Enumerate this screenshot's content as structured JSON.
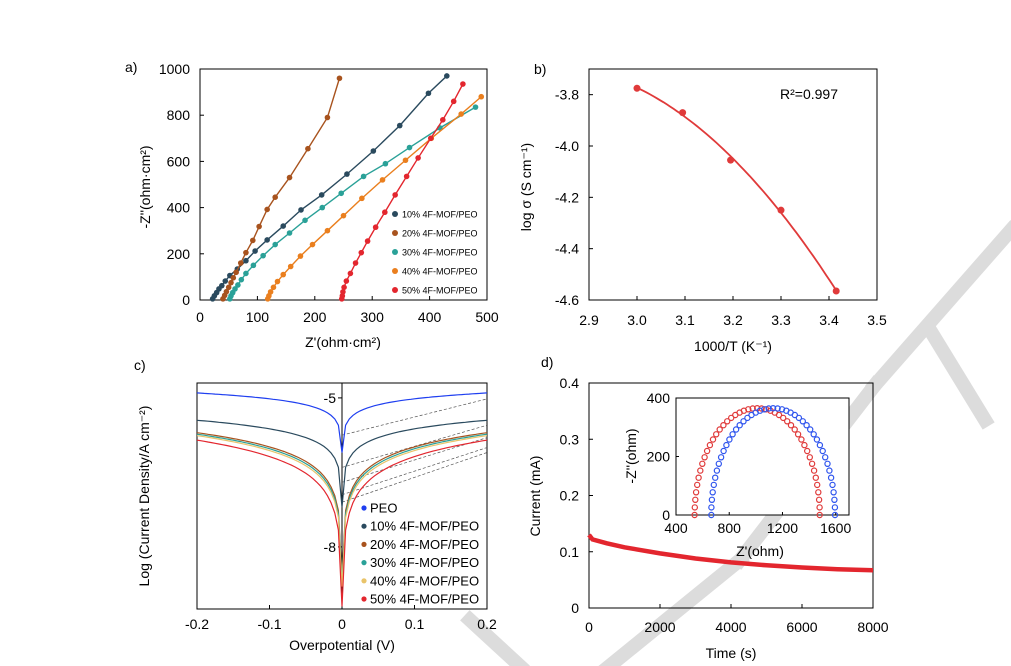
{
  "panels": {
    "a": {
      "label": "a)",
      "xlabel": "Z'(ohm·cm²)",
      "ylabel": "-Z''(ohm·cm²)"
    },
    "b": {
      "label": "b)",
      "xlabel": "1000/T (K⁻¹)",
      "ylabel": "log σ (S cm⁻¹)",
      "annotation": "R²=0.997"
    },
    "c": {
      "label": "c)",
      "xlabel": "Overpotential (V)",
      "ylabel": "Log (Current Density/A cm⁻²)"
    },
    "d": {
      "label": "d)",
      "xlabel": "Time (s)",
      "ylabel": "Current (mA)",
      "inset_xlabel": "Z'(ohm)",
      "inset_ylabel": "-Z''(ohm)"
    }
  },
  "colors": {
    "s10": "#2a4a5e",
    "s20": "#a8531e",
    "s30": "#2aa198",
    "s40": "#ea7f1e",
    "s50": "#e3262e",
    "peo": "#1f3ff0",
    "red": "#e03a3a",
    "blue": "#2f55ee",
    "watermark": "#dcdcdc"
  },
  "chart_data": [
    {
      "id": "a",
      "type": "scatter",
      "title": "",
      "xlabel": "Z'(ohm·cm²)",
      "ylabel": "-Z''(ohm·cm²)",
      "xlim": [
        0,
        500
      ],
      "ylim": [
        0,
        1000
      ],
      "xticks": [
        "0",
        "100",
        "200",
        "300",
        "400",
        "500"
      ],
      "yticks": [
        "0",
        "200",
        "400",
        "600",
        "800",
        "1000"
      ],
      "legend_position": "bottom-right",
      "series": [
        {
          "name": "10% 4F-MOF/PEO",
          "color": "#2a4a5e",
          "x": [
            22,
            25,
            29,
            33,
            38,
            44,
            52,
            65,
            80,
            96,
            117,
            145,
            176,
            212,
            256,
            302,
            348,
            398,
            430
          ],
          "y": [
            5,
            18,
            32,
            48,
            62,
            82,
            106,
            134,
            170,
            212,
            260,
            320,
            390,
            455,
            545,
            645,
            755,
            895,
            970
          ]
        },
        {
          "name": "20% 4F-MOF/PEO",
          "color": "#a8531e",
          "x": [
            40,
            43,
            46,
            50,
            54,
            58,
            63,
            71,
            80,
            92,
            103,
            117,
            131,
            156,
            188,
            222,
            243
          ],
          "y": [
            5,
            20,
            36,
            55,
            75,
            96,
            120,
            160,
            205,
            258,
            318,
            392,
            445,
            530,
            655,
            790,
            960
          ]
        },
        {
          "name": "30% 4F-MOF/PEO",
          "color": "#2aa198",
          "x": [
            52,
            54,
            57,
            61,
            66,
            72,
            80,
            93,
            110,
            131,
            156,
            183,
            213,
            246,
            285,
            323,
            365,
            418,
            480
          ],
          "y": [
            5,
            18,
            32,
            48,
            65,
            88,
            115,
            150,
            192,
            240,
            290,
            345,
            400,
            462,
            535,
            590,
            660,
            745,
            835
          ]
        },
        {
          "name": "40% 4F-MOF/PEO",
          "color": "#ea7f1e",
          "x": [
            118,
            120,
            123,
            128,
            135,
            145,
            158,
            175,
            196,
            222,
            250,
            282,
            318,
            358,
            403,
            455,
            490
          ],
          "y": [
            5,
            18,
            35,
            55,
            80,
            110,
            145,
            190,
            240,
            300,
            365,
            440,
            520,
            605,
            700,
            805,
            880
          ]
        },
        {
          "name": "50% 4F-MOF/PEO",
          "color": "#e3262e",
          "x": [
            247,
            248,
            249,
            251,
            255,
            262,
            271,
            281,
            292,
            306,
            322,
            340,
            360,
            380,
            402,
            423,
            442,
            458
          ],
          "y": [
            5,
            18,
            35,
            55,
            82,
            115,
            160,
            205,
            255,
            315,
            380,
            455,
            535,
            615,
            700,
            780,
            860,
            935
          ]
        }
      ]
    },
    {
      "id": "b",
      "type": "scatter",
      "title": "",
      "xlabel": "1000/T (K⁻¹)",
      "ylabel": "log σ (S cm⁻¹)",
      "xlim": [
        2.9,
        3.5
      ],
      "ylim": [
        -4.6,
        -3.7
      ],
      "xticks": [
        "2.9",
        "3.0",
        "3.1",
        "3.2",
        "3.3",
        "3.4",
        "3.5"
      ],
      "yticks": [
        "-3.8",
        "-4.0",
        "-4.2",
        "-4.4",
        "-4.6"
      ],
      "annotation": "R²=0.997",
      "series": [
        {
          "name": "",
          "color": "#e03a3a",
          "x": [
            3.0,
            3.095,
            3.195,
            3.3,
            3.415
          ],
          "y": [
            -3.775,
            -3.87,
            -4.055,
            -4.25,
            -4.565
          ],
          "fit": "quadratic"
        }
      ]
    },
    {
      "id": "c",
      "type": "line",
      "title": "",
      "xlabel": "Overpotential (V)",
      "ylabel": "Log (Current Density/A cm⁻²)",
      "xlim": [
        -0.2,
        0.2
      ],
      "ylim": [
        -9.25,
        -4.7
      ],
      "xticks": [
        "-0.2",
        "-0.1",
        "0",
        "0.1",
        "0.2"
      ],
      "yticks": [
        "-5",
        "-8"
      ],
      "legend_position": "bottom-right",
      "series": [
        {
          "name": "PEO",
          "color": "#1f3ff0",
          "edge": -4.9,
          "dip": -6.1
        },
        {
          "name": "10% 4F-MOF/PEO",
          "color": "#2a4a5e",
          "edge": -5.45,
          "dip": -7.2
        },
        {
          "name": "20% 4F-MOF/PEO",
          "color": "#a8531e",
          "edge": -5.7,
          "dip": -8.6
        },
        {
          "name": "30% 4F-MOF/PEO",
          "color": "#2aa198",
          "edge": -5.73,
          "dip": -8.7
        },
        {
          "name": "40% 4F-MOF/PEO",
          "color": "#e9c46a",
          "edge": -5.76,
          "dip": -8.8
        },
        {
          "name": "50% 4F-MOF/PEO",
          "color": "#e3262e",
          "edge": -5.85,
          "dip": -9.2
        }
      ]
    },
    {
      "id": "d",
      "type": "line",
      "title": "",
      "xlabel": "Time (s)",
      "ylabel": "Current (mA)",
      "xlim": [
        0,
        8000
      ],
      "ylim": [
        0,
        0.4
      ],
      "xticks": [
        "0",
        "2000",
        "4000",
        "6000",
        "8000"
      ],
      "yticks": [
        "0",
        "0.1",
        "0.2",
        "0.3",
        "0.4"
      ],
      "series": [
        {
          "name": "",
          "color": "#e3262e",
          "x": [
            0,
            100,
            500,
            1000,
            2000,
            3000,
            4000,
            5000,
            6000,
            7000,
            8000
          ],
          "y": [
            0.13,
            0.122,
            0.115,
            0.108,
            0.097,
            0.088,
            0.081,
            0.076,
            0.072,
            0.069,
            0.067
          ]
        }
      ],
      "inset": {
        "type": "scatter",
        "xlabel": "Z'(ohm)",
        "ylabel": "-Z''(ohm)",
        "xlim": [
          400,
          1700
        ],
        "ylim": [
          0,
          400
        ],
        "xticks": [
          "400",
          "800",
          "1200",
          "1600"
        ],
        "yticks": [
          "0",
          "200",
          "400"
        ],
        "series": [
          {
            "name": "",
            "color": "#e03a3a",
            "center": 1010,
            "radius": 470,
            "height": 365
          },
          {
            "name": "",
            "color": "#2f55ee",
            "center": 1130,
            "radius": 465,
            "height": 365
          }
        ]
      }
    }
  ]
}
